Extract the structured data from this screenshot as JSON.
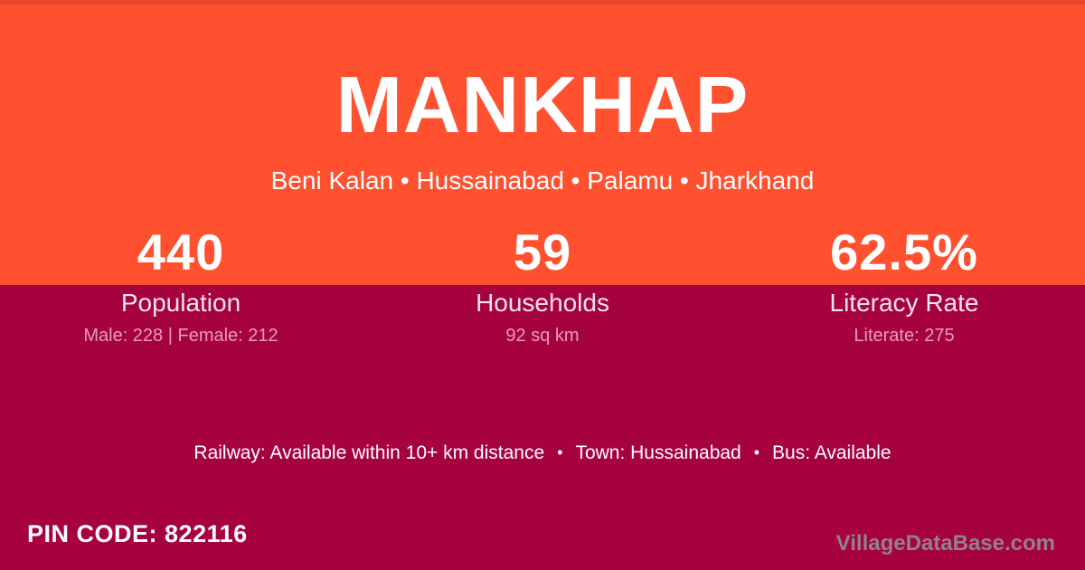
{
  "card": {
    "title": "MANKHAP",
    "subtitle": "Beni Kalan • Hussainabad • Palamu • Jharkhand",
    "stats": [
      {
        "value": "440",
        "label": "Population",
        "detail": "Male: 228 | Female: 212"
      },
      {
        "value": "59",
        "label": "Households",
        "detail": "92 sq km"
      },
      {
        "value": "62.5%",
        "label": "Literacy Rate",
        "detail": "Literate: 275"
      }
    ],
    "facilities": {
      "items": [
        "Railway: Available within 10+ km distance",
        "Town: Hussainabad",
        "Bus: Available"
      ],
      "bullet": "•"
    },
    "pin": {
      "label": "PIN CODE:",
      "value": "822116"
    },
    "watermark": "VillageDataBase.com",
    "colors": {
      "band_top": "#FF5130",
      "band_bottom": "#A5023F",
      "top_accent": "#E5472B",
      "primary_text": "#FFFFFF",
      "label_text": "#F5E4EC",
      "detail_text": "#EA9BB8",
      "watermark_text": "#938089"
    }
  }
}
